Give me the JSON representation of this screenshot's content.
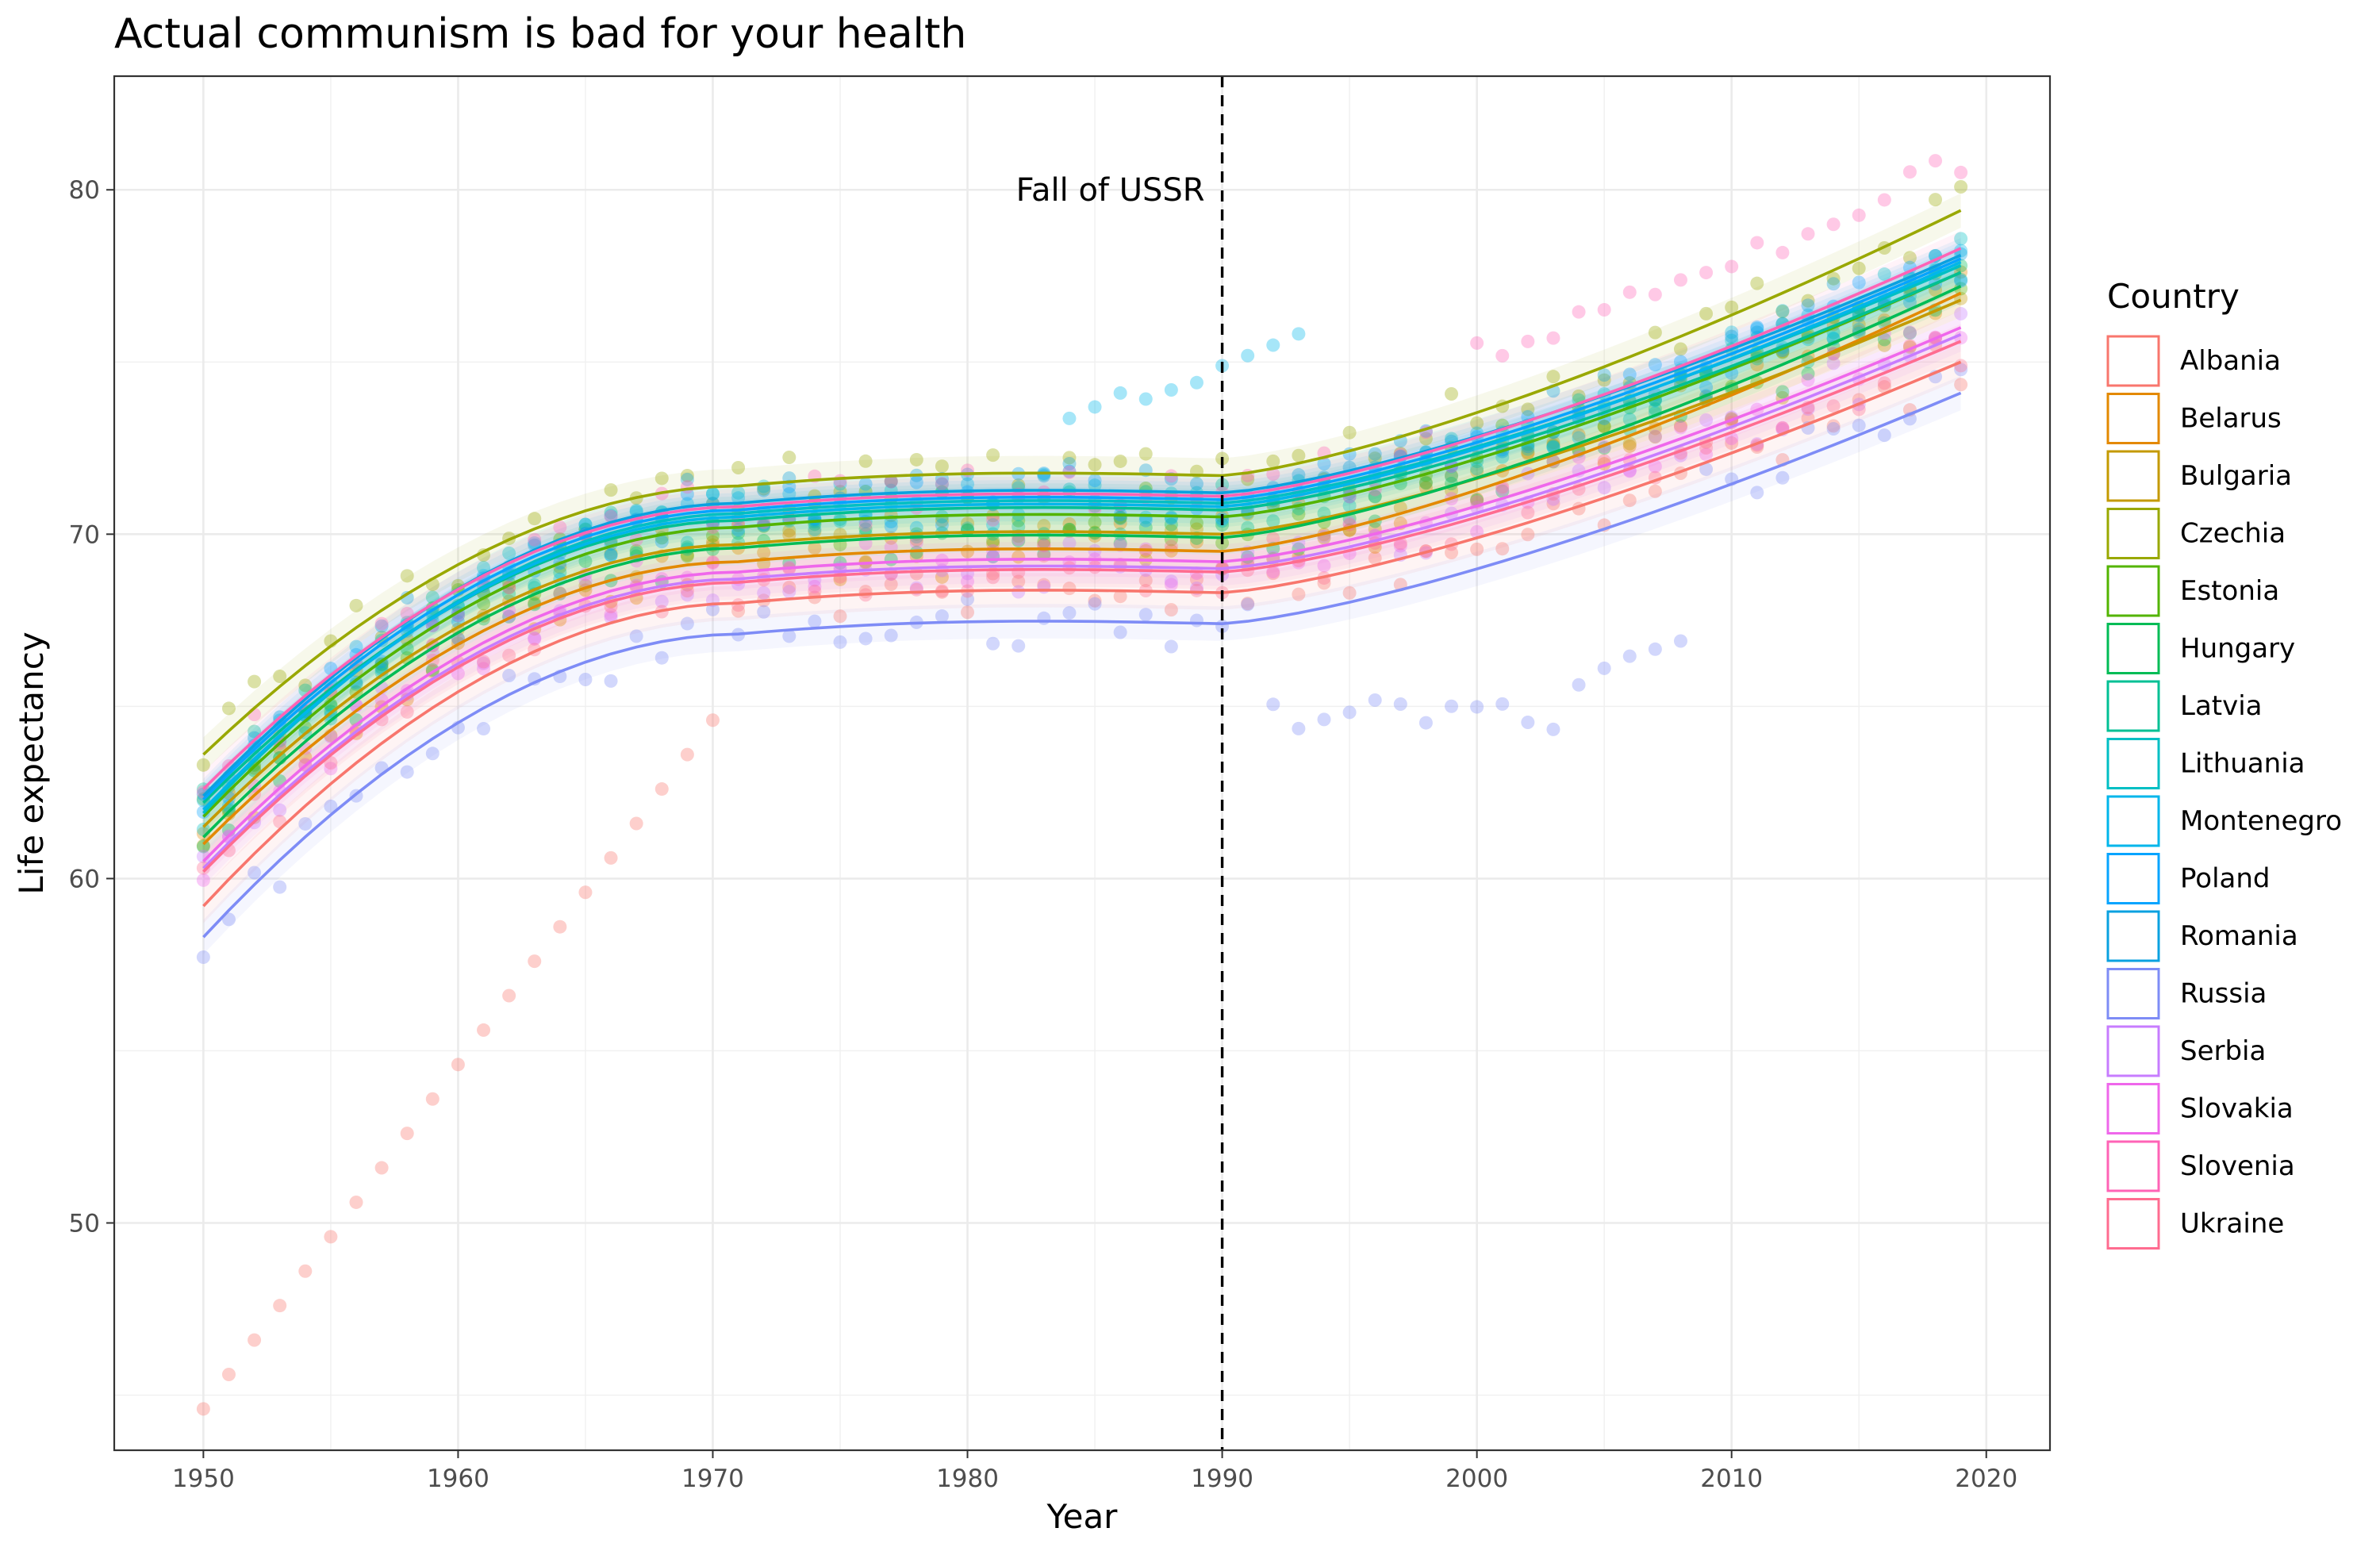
{
  "chart_data": {
    "type": "scatter",
    "title": "Actual communism is bad for your health",
    "xlabel": "Year",
    "ylabel": "Life expectancy",
    "xlim": [
      1946.5,
      2022.5
    ],
    "ylim": [
      43.4,
      83.3
    ],
    "x_ticks": [
      1950,
      1960,
      1970,
      1980,
      1990,
      2000,
      2010,
      2020
    ],
    "y_ticks": [
      50,
      60,
      70,
      80
    ],
    "grid": true,
    "legend_title": "Country",
    "legend_position": "right",
    "vline": {
      "x": 1990,
      "style": "dashed",
      "label": "Fall of USSR"
    },
    "series": [
      {
        "name": "Albania",
        "color": "#F8766D",
        "smooth_start": 59.2,
        "smooth_end": 75.0,
        "curve_offset": -2.0,
        "deviation": "albania"
      },
      {
        "name": "Belarus",
        "color": "#E38900",
        "smooth_start": 61.0,
        "smooth_end": 77.0,
        "curve_offset": -0.8,
        "deviation": "none"
      },
      {
        "name": "Bulgaria",
        "color": "#C49A00",
        "smooth_start": 61.5,
        "smooth_end": 76.8,
        "curve_offset": -0.3,
        "deviation": "none"
      },
      {
        "name": "Czechia",
        "color": "#99A800",
        "smooth_start": 63.6,
        "smooth_end": 79.4,
        "curve_offset": 1.4,
        "deviation": "none"
      },
      {
        "name": "Estonia",
        "color": "#53B400",
        "smooth_start": 61.8,
        "smooth_end": 77.6,
        "curve_offset": 0.2,
        "deviation": "none"
      },
      {
        "name": "Hungary",
        "color": "#00BC56",
        "smooth_start": 61.2,
        "smooth_end": 77.2,
        "curve_offset": -0.4,
        "deviation": "none"
      },
      {
        "name": "Latvia",
        "color": "#00C094",
        "smooth_start": 62.2,
        "smooth_end": 77.6,
        "curve_offset": 0.4,
        "deviation": "none"
      },
      {
        "name": "Lithuania",
        "color": "#00BFC4",
        "smooth_start": 61.9,
        "smooth_end": 77.8,
        "curve_offset": 0.6,
        "deviation": "none"
      },
      {
        "name": "Montenegro",
        "color": "#00B6EB",
        "smooth_start": 62.0,
        "smooth_end": 77.9,
        "curve_offset": 0.5,
        "deviation": "montenegro"
      },
      {
        "name": "Poland",
        "color": "#06A4FF",
        "smooth_start": 62.3,
        "smooth_end": 78.0,
        "curve_offset": 0.7,
        "deviation": "none"
      },
      {
        "name": "Romania",
        "color": "#0AA1E0",
        "smooth_start": 62.4,
        "smooth_end": 78.1,
        "curve_offset": 0.9,
        "deviation": "none"
      },
      {
        "name": "Russia",
        "color": "#7E8CF6",
        "smooth_start": 58.3,
        "smooth_end": 74.1,
        "curve_offset": -2.9,
        "deviation": "russia"
      },
      {
        "name": "Serbia",
        "color": "#C77CFF",
        "smooth_start": 60.3,
        "smooth_end": 75.8,
        "curve_offset": -1.3,
        "deviation": "none"
      },
      {
        "name": "Slovakia",
        "color": "#EF67EB",
        "smooth_start": 60.5,
        "smooth_end": 76.0,
        "curve_offset": -1.1,
        "deviation": "none"
      },
      {
        "name": "Slovenia",
        "color": "#FF63B6",
        "smooth_start": 62.6,
        "smooth_end": 78.3,
        "curve_offset": 0.8,
        "deviation": "slovenia"
      },
      {
        "name": "Ukraine",
        "color": "#FF6C90",
        "smooth_start": 60.2,
        "smooth_end": 75.6,
        "curve_offset": -1.4,
        "deviation": "none"
      }
    ]
  }
}
